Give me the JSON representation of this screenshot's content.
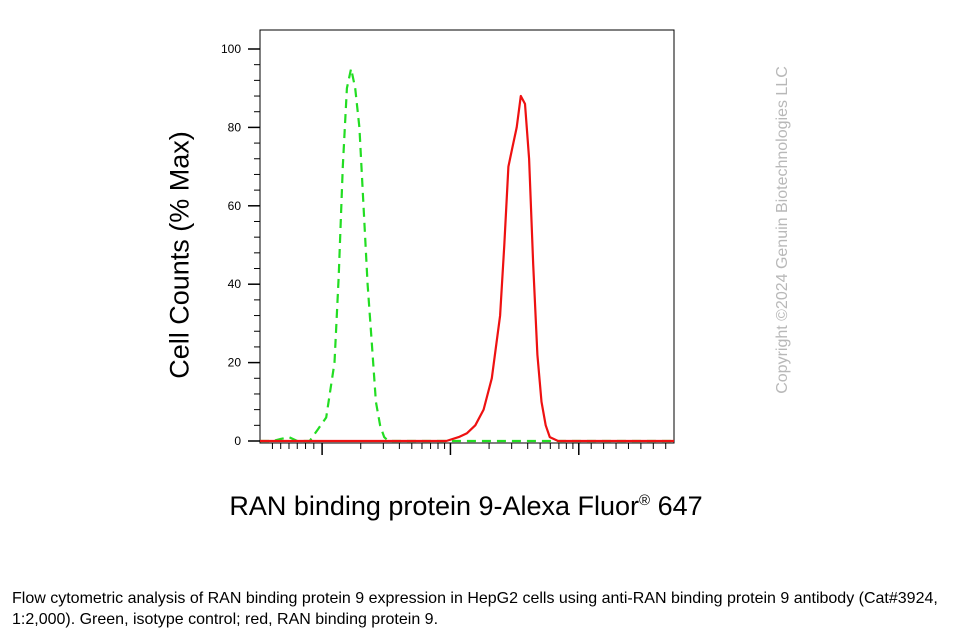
{
  "chart_data": {
    "type": "line",
    "title": "",
    "xlabel": "RAN binding protein 9-Alexa Fluor",
    "xlabel_superscript": "®",
    "xlabel_suffix": " 647",
    "ylabel": "Cell Counts (% Max)",
    "ylim": [
      0,
      100
    ],
    "y_ticks": [
      "0",
      "20",
      "40",
      "60",
      "80",
      "100"
    ],
    "x_scale": "log (biexponential)",
    "x_tick_labels_shown": false,
    "grid": false,
    "legend": "none",
    "series": [
      {
        "color": "#22dd22",
        "style": "dashed",
        "points": [
          [
            0,
            0
          ],
          [
            3,
            0
          ],
          [
            5,
            0.5
          ],
          [
            7,
            1
          ],
          [
            9,
            0
          ],
          [
            12,
            0
          ],
          [
            14,
            3
          ],
          [
            16,
            6
          ],
          [
            18,
            20
          ],
          [
            19,
            42
          ],
          [
            20,
            70
          ],
          [
            21,
            90
          ],
          [
            22,
            95
          ],
          [
            23,
            90
          ],
          [
            24,
            80
          ],
          [
            25,
            60
          ],
          [
            26,
            40
          ],
          [
            27,
            25
          ],
          [
            28,
            10
          ],
          [
            29,
            4
          ],
          [
            30,
            1
          ],
          [
            31,
            0
          ],
          [
            100,
            0
          ]
        ]
      },
      {
        "color": "#ee1111",
        "style": "solid",
        "points": [
          [
            0,
            0
          ],
          [
            45,
            0
          ],
          [
            48,
            1
          ],
          [
            50,
            2
          ],
          [
            52,
            4
          ],
          [
            54,
            8
          ],
          [
            56,
            16
          ],
          [
            58,
            32
          ],
          [
            59,
            50
          ],
          [
            60,
            70
          ],
          [
            61,
            75
          ],
          [
            62,
            80
          ],
          [
            63,
            88
          ],
          [
            64,
            86
          ],
          [
            65,
            72
          ],
          [
            66,
            45
          ],
          [
            67,
            22
          ],
          [
            68,
            10
          ],
          [
            69,
            4
          ],
          [
            70,
            1
          ],
          [
            72,
            0
          ],
          [
            100,
            0
          ]
        ]
      }
    ]
  },
  "watermark": "Copyright ©2024 Genuin Biotechnologies LLC",
  "caption": "Flow cytometric analysis of RAN binding protein 9 expression in HepG2 cells using anti-RAN binding protein 9 antibody (Cat#3924, 1:2,000). Green, isotype control; red, RAN binding protein 9."
}
